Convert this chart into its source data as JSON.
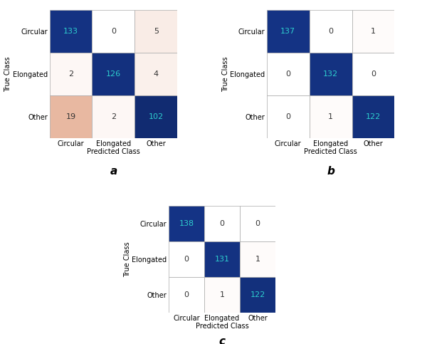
{
  "matrices": [
    [
      [
        133,
        0,
        5
      ],
      [
        2,
        126,
        4
      ],
      [
        19,
        2,
        102
      ]
    ],
    [
      [
        137,
        0,
        1
      ],
      [
        0,
        132,
        0
      ],
      [
        0,
        1,
        122
      ]
    ],
    [
      [
        138,
        0,
        0
      ],
      [
        0,
        131,
        1
      ],
      [
        0,
        1,
        122
      ]
    ]
  ],
  "labels": [
    "Circular",
    "Elongated",
    "Other"
  ],
  "subtitles": [
    "a",
    "b",
    "c"
  ],
  "xlabel": "Predicted Class",
  "ylabel": "True Class",
  "diag_color": [
    0.08,
    0.2,
    0.52
  ],
  "diag_text_color": "#2ecece",
  "off_high_color": [
    0.91,
    0.72,
    0.63
  ],
  "off_low_color": [
    1.0,
    1.0,
    1.0
  ],
  "text_color_dark": "#333333",
  "cell_edge_color": "#aaaaaa",
  "subtitle_fontsize": 11,
  "label_fontsize": 7,
  "value_fontsize": 8
}
